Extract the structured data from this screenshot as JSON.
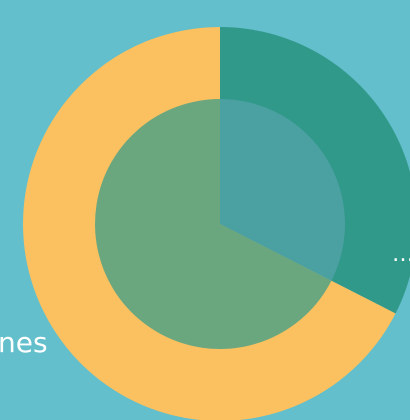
{
  "chart_data": {
    "type": "pie",
    "title": "",
    "rings": [
      {
        "name": "",
        "values": [
          0.325,
          0.675
        ],
        "colors": [
          "#31998a",
          "#fbc060"
        ]
      },
      {
        "name": "",
        "values": [
          0.325,
          0.675
        ],
        "colors": [
          "#4ba0a2",
          "#6aa77f"
        ]
      }
    ]
  },
  "background_color": "#62bfcb",
  "text_snippets": {
    "dots": "…",
    "word_fragment": "nes"
  }
}
